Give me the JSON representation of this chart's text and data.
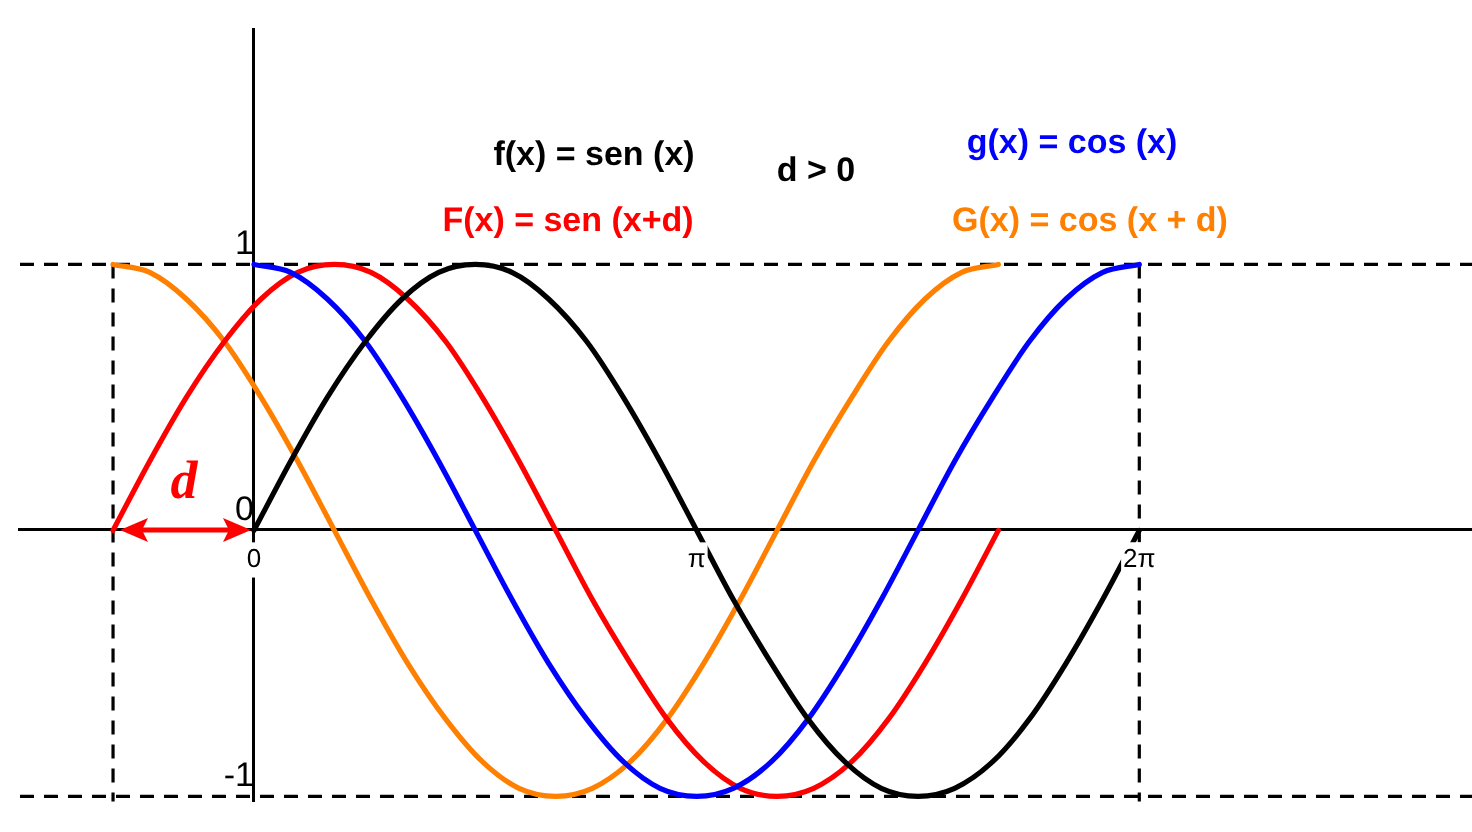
{
  "chart_data": {
    "type": "line",
    "series": [
      {
        "name": "f(x) = sen (x)",
        "color": "#000000",
        "x": [
          0,
          0.26,
          0.52,
          0.79,
          1.05,
          1.31,
          1.57,
          1.83,
          2.09,
          2.36,
          2.62,
          2.88,
          3.14,
          3.4,
          3.67,
          3.93,
          4.19,
          4.45,
          4.71,
          4.97,
          5.24,
          5.5,
          5.76,
          6.02,
          6.28
        ],
        "values": [
          0,
          0.26,
          0.5,
          0.71,
          0.87,
          0.97,
          1,
          0.97,
          0.87,
          0.71,
          0.5,
          0.26,
          0,
          -0.26,
          -0.5,
          -0.71,
          -0.87,
          -0.97,
          -1,
          -0.97,
          -0.87,
          -0.71,
          -0.5,
          -0.26,
          0
        ]
      },
      {
        "name": "g(x) = cos (x)",
        "color": "#0000ff",
        "x": [
          0,
          0.26,
          0.52,
          0.79,
          1.05,
          1.31,
          1.57,
          1.83,
          2.09,
          2.36,
          2.62,
          2.88,
          3.14,
          3.4,
          3.67,
          3.93,
          4.19,
          4.45,
          4.71,
          4.97,
          5.24,
          5.5,
          5.76,
          6.02,
          6.28
        ],
        "values": [
          1,
          0.97,
          0.87,
          0.71,
          0.5,
          0.26,
          0,
          -0.26,
          -0.5,
          -0.71,
          -0.87,
          -0.97,
          -1,
          -0.97,
          -0.87,
          -0.71,
          -0.5,
          -0.26,
          0,
          0.26,
          0.5,
          0.71,
          0.87,
          0.97,
          1
        ]
      },
      {
        "name": "F(x) = sen (x+d)",
        "color": "#ff0000",
        "x": [
          -1,
          -0.74,
          -0.48,
          -0.21,
          0.05,
          0.31,
          0.57,
          0.83,
          1.09,
          1.36,
          1.62,
          1.88,
          2.14,
          2.4,
          2.67,
          2.93,
          3.19,
          3.45,
          3.71,
          3.97,
          4.24,
          4.5,
          4.76,
          5.02,
          5.28
        ],
        "values": [
          0,
          0.26,
          0.5,
          0.71,
          0.87,
          0.97,
          1,
          0.97,
          0.87,
          0.71,
          0.5,
          0.26,
          0,
          -0.26,
          -0.5,
          -0.71,
          -0.87,
          -0.97,
          -1,
          -0.97,
          -0.87,
          -0.71,
          -0.5,
          -0.26,
          0
        ]
      },
      {
        "name": "G(x) = cos (x + d)",
        "color": "#ff7f00",
        "x": [
          -1,
          -0.74,
          -0.48,
          -0.21,
          0.05,
          0.31,
          0.57,
          0.83,
          1.09,
          1.36,
          1.62,
          1.88,
          2.14,
          2.4,
          2.67,
          2.93,
          3.19,
          3.45,
          3.71,
          3.97,
          4.24,
          4.5,
          4.76,
          5.02,
          5.28
        ],
        "values": [
          1,
          0.97,
          0.87,
          0.71,
          0.5,
          0.26,
          0,
          -0.26,
          -0.5,
          -0.71,
          -0.87,
          -0.97,
          -1,
          -0.97,
          -0.87,
          -0.71,
          -0.5,
          -0.26,
          0,
          0.26,
          0.5,
          0.71,
          0.87,
          0.97,
          1
        ]
      }
    ],
    "xlim": [
      -1.66,
      8.64
    ],
    "ylim": [
      -1.02,
      1.88
    ],
    "xticks": [
      {
        "value": 0,
        "label": "0"
      },
      {
        "value": 3.14,
        "label": "π"
      },
      {
        "value": 6.28,
        "label": "2π"
      }
    ],
    "yticks": [
      -1,
      0,
      1
    ],
    "ref_lines": [
      {
        "axis": "y",
        "value": 1,
        "line_style": "dashed",
        "color": "#000000"
      },
      {
        "axis": "y",
        "value": -1,
        "line_style": "dashed",
        "color": "#000000"
      },
      {
        "axis": "x",
        "value": -1,
        "line_style": "dashed",
        "color": "#000000"
      },
      {
        "axis": "x",
        "value": 6.28,
        "line_style": "dashed",
        "color": "#000000"
      }
    ],
    "annotations": [
      "d > 0",
      "d"
    ],
    "grid": false,
    "legend": false,
    "marker": "none",
    "line_style": "solid"
  }
}
